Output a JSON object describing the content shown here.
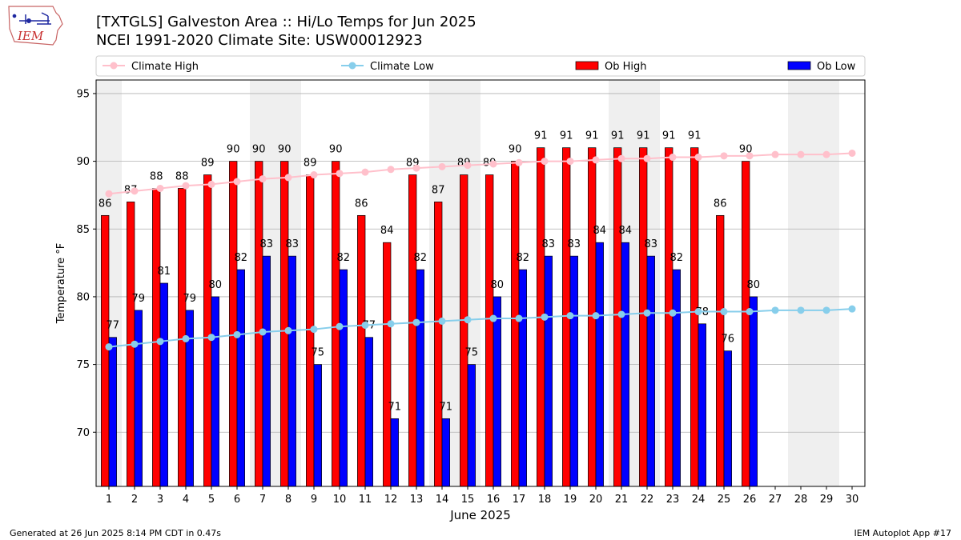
{
  "header": {
    "title_line1": "[TXTGLS] Galveston Area :: Hi/Lo Temps for Jun 2025",
    "title_line2": "NCEI 1991-2020 Climate Site: USW00012923",
    "logo_text": "IEM"
  },
  "footer": {
    "generated": "Generated at 26 Jun 2025 8:14 PM CDT in 0.47s",
    "app": "IEM Autoplot App #17"
  },
  "colors": {
    "ob_high": "#ff0000",
    "ob_low": "#0000ff",
    "climate_high": "#ffc0cb",
    "climate_low": "#87ceeb",
    "weekend_shade": "#efefef",
    "grid": "#b0b0b0"
  },
  "chart_data": {
    "type": "bar",
    "xlabel": "June 2025",
    "ylabel": "Temperature °F",
    "xlim": [
      0.5,
      30.5
    ],
    "ylim": [
      66,
      96
    ],
    "yticks": [
      70,
      75,
      80,
      85,
      90,
      95
    ],
    "grid": "horizontal",
    "legend_position": "top",
    "weekend_days": [
      1,
      7,
      8,
      14,
      15,
      21,
      22,
      28,
      29
    ],
    "days": [
      1,
      2,
      3,
      4,
      5,
      6,
      7,
      8,
      9,
      10,
      11,
      12,
      13,
      14,
      15,
      16,
      17,
      18,
      19,
      20,
      21,
      22,
      23,
      24,
      25,
      26,
      27,
      28,
      29,
      30
    ],
    "series": [
      {
        "name": "Climate High",
        "kind": "line",
        "values": [
          87.6,
          87.8,
          88.0,
          88.2,
          88.3,
          88.5,
          88.7,
          88.8,
          89.0,
          89.1,
          89.2,
          89.4,
          89.5,
          89.6,
          89.7,
          89.8,
          89.9,
          90.0,
          90.0,
          90.1,
          90.2,
          90.2,
          90.3,
          90.3,
          90.4,
          90.4,
          90.5,
          90.5,
          90.5,
          90.6
        ]
      },
      {
        "name": "Climate Low",
        "kind": "line",
        "values": [
          76.3,
          76.5,
          76.7,
          76.9,
          77.0,
          77.2,
          77.4,
          77.5,
          77.6,
          77.8,
          77.9,
          78.0,
          78.1,
          78.2,
          78.3,
          78.4,
          78.4,
          78.5,
          78.6,
          78.6,
          78.7,
          78.8,
          78.8,
          78.9,
          78.9,
          78.9,
          79.0,
          79.0,
          79.0,
          79.1
        ]
      },
      {
        "name": "Ob High",
        "kind": "bar",
        "values": [
          86,
          87,
          88,
          88,
          89,
          90,
          90,
          90,
          89,
          90,
          86,
          84,
          89,
          87,
          89,
          89,
          90,
          91,
          91,
          91,
          91,
          91,
          91,
          91,
          86,
          90
        ]
      },
      {
        "name": "Ob Low",
        "kind": "bar",
        "values": [
          77,
          79,
          81,
          79,
          80,
          82,
          83,
          83,
          75,
          82,
          77,
          71,
          82,
          71,
          75,
          80,
          82,
          83,
          83,
          84,
          84,
          83,
          82,
          78,
          76,
          80
        ]
      }
    ]
  }
}
